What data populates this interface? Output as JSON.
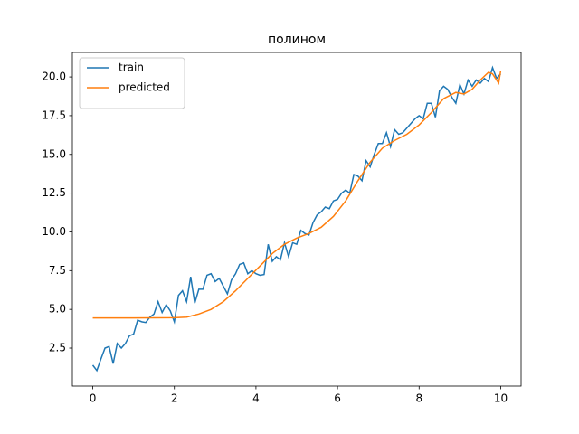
{
  "chart_data": {
    "type": "line",
    "title": "полином",
    "series": [
      {
        "name": "train",
        "color": "#1f77b4",
        "x": [
          0,
          0.1,
          0.2,
          0.3,
          0.4,
          0.5,
          0.6,
          0.7,
          0.8,
          0.9,
          1,
          1.1,
          1.2,
          1.3,
          1.4,
          1.5,
          1.6,
          1.7,
          1.8,
          1.9,
          2,
          2.1,
          2.2,
          2.3,
          2.4,
          2.5,
          2.6,
          2.7,
          2.8,
          2.9,
          3,
          3.1,
          3.2,
          3.3,
          3.4,
          3.5,
          3.6,
          3.7,
          3.8,
          3.9,
          4,
          4.1,
          4.2,
          4.3,
          4.4,
          4.5,
          4.6,
          4.7,
          4.8,
          4.9,
          5,
          5.1,
          5.2,
          5.3,
          5.4,
          5.5,
          5.6,
          5.7,
          5.8,
          5.9,
          6,
          6.1,
          6.2,
          6.3,
          6.4,
          6.5,
          6.6,
          6.7,
          6.8,
          6.9,
          7,
          7.1,
          7.2,
          7.3,
          7.4,
          7.5,
          7.6,
          7.7,
          7.8,
          7.9,
          8,
          8.1,
          8.2,
          8.3,
          8.4,
          8.5,
          8.6,
          8.7,
          8.8,
          8.9,
          9,
          9.1,
          9.2,
          9.3,
          9.4,
          9.5,
          9.6,
          9.7,
          9.8,
          9.9,
          10
        ],
        "values": [
          1.4,
          1.05,
          1.8,
          2.5,
          2.6,
          1.5,
          2.8,
          2.5,
          2.8,
          3.3,
          3.4,
          4.3,
          4.2,
          4.15,
          4.5,
          4.7,
          5.5,
          4.8,
          5.3,
          4.9,
          4.2,
          5.9,
          6.2,
          5.5,
          7.1,
          5.4,
          6.3,
          6.3,
          7.2,
          7.3,
          6.8,
          7.0,
          6.5,
          6.0,
          6.9,
          7.3,
          7.9,
          8.0,
          7.3,
          7.5,
          7.3,
          7.2,
          7.25,
          9.2,
          8.1,
          8.4,
          8.2,
          9.3,
          8.4,
          9.3,
          9.2,
          10.1,
          9.9,
          9.8,
          10.6,
          11.1,
          11.3,
          11.6,
          11.5,
          12.0,
          12.1,
          12.5,
          12.7,
          12.5,
          13.7,
          13.6,
          13.3,
          14.6,
          14.2,
          15.0,
          15.7,
          15.7,
          16.4,
          15.5,
          16.6,
          16.3,
          16.4,
          16.7,
          17.0,
          17.3,
          17.5,
          17.3,
          18.3,
          18.3,
          17.4,
          19.1,
          19.4,
          19.2,
          18.7,
          18.3,
          19.5,
          18.9,
          19.8,
          19.4,
          19.8,
          19.6,
          19.9,
          19.7,
          20.6,
          19.9,
          20.2
        ]
      },
      {
        "name": "predicted",
        "color": "#ff7f0e",
        "x": [
          0,
          1,
          2,
          2.3,
          2.6,
          2.9,
          3.2,
          3.5,
          3.8,
          4.1,
          4.4,
          4.7,
          5,
          5.3,
          5.6,
          5.9,
          6.2,
          6.5,
          6.8,
          7.1,
          7.4,
          7.7,
          8,
          8.3,
          8.6,
          8.9,
          9.1,
          9.3,
          9.5,
          9.7,
          9.8,
          9.95,
          10
        ],
        "values": [
          4.45,
          4.45,
          4.46,
          4.5,
          4.7,
          5.0,
          5.5,
          6.2,
          7.0,
          7.8,
          8.6,
          9.2,
          9.6,
          9.9,
          10.3,
          11.0,
          12.0,
          13.3,
          14.5,
          15.4,
          15.9,
          16.3,
          16.9,
          17.7,
          18.6,
          19.0,
          18.9,
          19.2,
          19.8,
          20.3,
          20.2,
          19.6,
          20.4
        ]
      }
    ],
    "xlim": [
      -0.5,
      10.5
    ],
    "xticks": [
      0,
      2,
      4,
      6,
      8,
      10
    ],
    "ylim": [
      0.05,
      21.58
    ],
    "yticks": [
      2.5,
      {
        "value": 5,
        "label": "5.0"
      },
      7.5,
      {
        "value": 10,
        "label": "10.0"
      },
      12.5,
      {
        "value": 15,
        "label": "15.0"
      },
      17.5,
      {
        "value": 20,
        "label": "20.0"
      }
    ],
    "grid": false,
    "legend": "upper left"
  }
}
